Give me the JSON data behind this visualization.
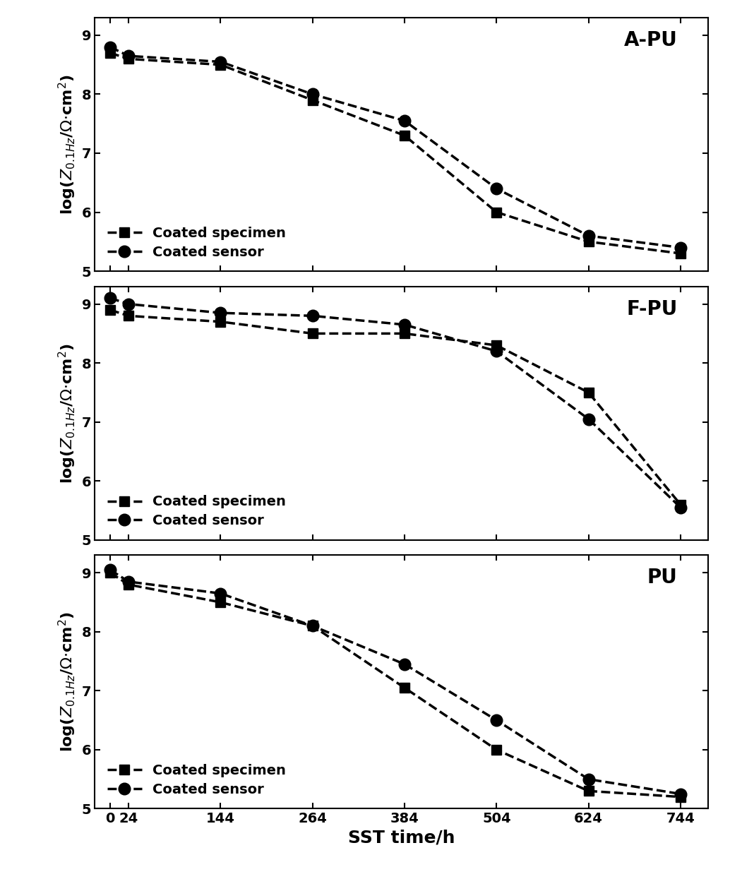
{
  "x": [
    0,
    24,
    144,
    264,
    384,
    504,
    624,
    744
  ],
  "panels": [
    {
      "label": "A-PU",
      "specimen": [
        8.7,
        8.6,
        8.5,
        7.9,
        7.3,
        6.0,
        5.5,
        5.3
      ],
      "sensor": [
        8.8,
        8.65,
        8.55,
        8.0,
        7.55,
        6.4,
        5.6,
        5.4
      ]
    },
    {
      "label": "F-PU",
      "specimen": [
        8.9,
        8.8,
        8.7,
        8.5,
        8.5,
        8.3,
        7.5,
        5.6
      ],
      "sensor": [
        9.1,
        9.0,
        8.85,
        8.8,
        8.65,
        8.2,
        7.05,
        5.55
      ]
    },
    {
      "label": "PU",
      "specimen": [
        9.0,
        8.8,
        8.5,
        8.1,
        7.05,
        6.0,
        5.3,
        5.2
      ],
      "sensor": [
        9.05,
        8.85,
        8.65,
        8.1,
        7.45,
        6.5,
        5.5,
        5.25
      ]
    }
  ],
  "ylim": [
    5,
    9.3
  ],
  "yticks": [
    5,
    6,
    7,
    8,
    9
  ],
  "xlabel": "SST time/h",
  "ylabel": "log($Z_{0.1Hz}$/$\\Omega$$\\cdot$cm$^2$)",
  "line_color": "black",
  "linewidth": 2.5,
  "markersize_sq": 10,
  "markersize_ci": 12,
  "legend_specimen": "Coated specimen",
  "legend_sensor": "Coated sensor",
  "title_fontsize": 20,
  "label_fontsize": 16,
  "tick_fontsize": 14,
  "legend_fontsize": 14
}
